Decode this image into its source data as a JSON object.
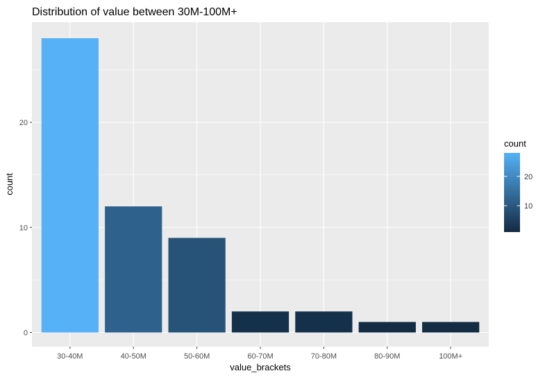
{
  "chart_data": {
    "type": "bar",
    "title": "Distribution of value between 30M-100M+",
    "xlabel": "value_brackets",
    "ylabel": "count",
    "categories": [
      "30-40M",
      "40-50M",
      "50-60M",
      "60-70M",
      "70-80M",
      "80-90M",
      "100M+"
    ],
    "values": [
      28,
      12,
      9,
      2,
      2,
      1,
      1
    ],
    "yticks": [
      0,
      10,
      20
    ],
    "ylim": [
      0,
      29.35
    ],
    "grid": true,
    "legend": {
      "title": "count",
      "position": "right",
      "type": "colorbar",
      "range": [
        1,
        28
      ],
      "ticks": [
        10,
        20
      ],
      "low_color": "#132B43",
      "high_color": "#56B1F7"
    },
    "panel_color": "#EBEBEB",
    "grid_color": "#FFFFFF"
  }
}
